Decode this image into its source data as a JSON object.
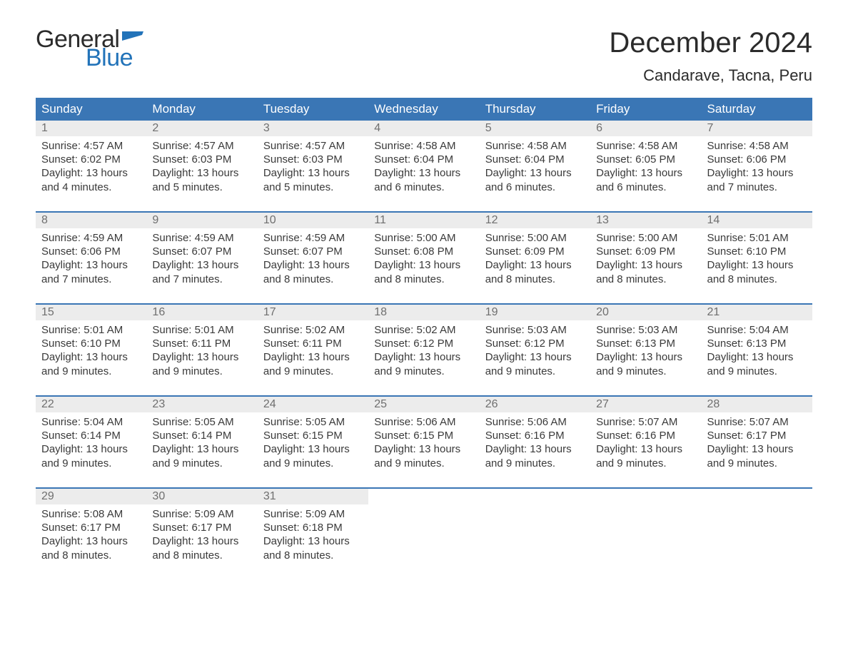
{
  "brand": {
    "part1": "General",
    "part2": "Blue"
  },
  "title": "December 2024",
  "location": "Candarave, Tacna, Peru",
  "colors": {
    "header_bg": "#3a76b5",
    "header_text": "#ffffff",
    "daynum_bg": "#ececec",
    "daynum_text": "#6f6f6f",
    "body_text": "#3a3a3a",
    "accent_blue": "#2273b9",
    "page_bg": "#ffffff"
  },
  "typography": {
    "title_fontsize": 40,
    "location_fontsize": 22,
    "weekday_fontsize": 17,
    "daynum_fontsize": 16,
    "body_fontsize": 15,
    "logo_fontsize": 34
  },
  "weekdays": [
    "Sunday",
    "Monday",
    "Tuesday",
    "Wednesday",
    "Thursday",
    "Friday",
    "Saturday"
  ],
  "labels": {
    "sunrise": "Sunrise:",
    "sunset": "Sunset:",
    "daylight": "Daylight:"
  },
  "weeks": [
    [
      {
        "day": "1",
        "sunrise": "4:57 AM",
        "sunset": "6:02 PM",
        "daylight": "13 hours and 4 minutes."
      },
      {
        "day": "2",
        "sunrise": "4:57 AM",
        "sunset": "6:03 PM",
        "daylight": "13 hours and 5 minutes."
      },
      {
        "day": "3",
        "sunrise": "4:57 AM",
        "sunset": "6:03 PM",
        "daylight": "13 hours and 5 minutes."
      },
      {
        "day": "4",
        "sunrise": "4:58 AM",
        "sunset": "6:04 PM",
        "daylight": "13 hours and 6 minutes."
      },
      {
        "day": "5",
        "sunrise": "4:58 AM",
        "sunset": "6:04 PM",
        "daylight": "13 hours and 6 minutes."
      },
      {
        "day": "6",
        "sunrise": "4:58 AM",
        "sunset": "6:05 PM",
        "daylight": "13 hours and 6 minutes."
      },
      {
        "day": "7",
        "sunrise": "4:58 AM",
        "sunset": "6:06 PM",
        "daylight": "13 hours and 7 minutes."
      }
    ],
    [
      {
        "day": "8",
        "sunrise": "4:59 AM",
        "sunset": "6:06 PM",
        "daylight": "13 hours and 7 minutes."
      },
      {
        "day": "9",
        "sunrise": "4:59 AM",
        "sunset": "6:07 PM",
        "daylight": "13 hours and 7 minutes."
      },
      {
        "day": "10",
        "sunrise": "4:59 AM",
        "sunset": "6:07 PM",
        "daylight": "13 hours and 8 minutes."
      },
      {
        "day": "11",
        "sunrise": "5:00 AM",
        "sunset": "6:08 PM",
        "daylight": "13 hours and 8 minutes."
      },
      {
        "day": "12",
        "sunrise": "5:00 AM",
        "sunset": "6:09 PM",
        "daylight": "13 hours and 8 minutes."
      },
      {
        "day": "13",
        "sunrise": "5:00 AM",
        "sunset": "6:09 PM",
        "daylight": "13 hours and 8 minutes."
      },
      {
        "day": "14",
        "sunrise": "5:01 AM",
        "sunset": "6:10 PM",
        "daylight": "13 hours and 8 minutes."
      }
    ],
    [
      {
        "day": "15",
        "sunrise": "5:01 AM",
        "sunset": "6:10 PM",
        "daylight": "13 hours and 9 minutes."
      },
      {
        "day": "16",
        "sunrise": "5:01 AM",
        "sunset": "6:11 PM",
        "daylight": "13 hours and 9 minutes."
      },
      {
        "day": "17",
        "sunrise": "5:02 AM",
        "sunset": "6:11 PM",
        "daylight": "13 hours and 9 minutes."
      },
      {
        "day": "18",
        "sunrise": "5:02 AM",
        "sunset": "6:12 PM",
        "daylight": "13 hours and 9 minutes."
      },
      {
        "day": "19",
        "sunrise": "5:03 AM",
        "sunset": "6:12 PM",
        "daylight": "13 hours and 9 minutes."
      },
      {
        "day": "20",
        "sunrise": "5:03 AM",
        "sunset": "6:13 PM",
        "daylight": "13 hours and 9 minutes."
      },
      {
        "day": "21",
        "sunrise": "5:04 AM",
        "sunset": "6:13 PM",
        "daylight": "13 hours and 9 minutes."
      }
    ],
    [
      {
        "day": "22",
        "sunrise": "5:04 AM",
        "sunset": "6:14 PM",
        "daylight": "13 hours and 9 minutes."
      },
      {
        "day": "23",
        "sunrise": "5:05 AM",
        "sunset": "6:14 PM",
        "daylight": "13 hours and 9 minutes."
      },
      {
        "day": "24",
        "sunrise": "5:05 AM",
        "sunset": "6:15 PM",
        "daylight": "13 hours and 9 minutes."
      },
      {
        "day": "25",
        "sunrise": "5:06 AM",
        "sunset": "6:15 PM",
        "daylight": "13 hours and 9 minutes."
      },
      {
        "day": "26",
        "sunrise": "5:06 AM",
        "sunset": "6:16 PM",
        "daylight": "13 hours and 9 minutes."
      },
      {
        "day": "27",
        "sunrise": "5:07 AM",
        "sunset": "6:16 PM",
        "daylight": "13 hours and 9 minutes."
      },
      {
        "day": "28",
        "sunrise": "5:07 AM",
        "sunset": "6:17 PM",
        "daylight": "13 hours and 9 minutes."
      }
    ],
    [
      {
        "day": "29",
        "sunrise": "5:08 AM",
        "sunset": "6:17 PM",
        "daylight": "13 hours and 8 minutes."
      },
      {
        "day": "30",
        "sunrise": "5:09 AM",
        "sunset": "6:17 PM",
        "daylight": "13 hours and 8 minutes."
      },
      {
        "day": "31",
        "sunrise": "5:09 AM",
        "sunset": "6:18 PM",
        "daylight": "13 hours and 8 minutes."
      },
      null,
      null,
      null,
      null
    ]
  ]
}
